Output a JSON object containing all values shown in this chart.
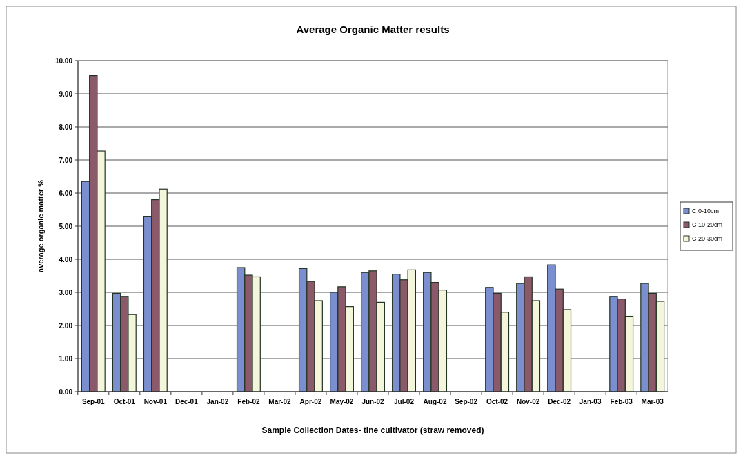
{
  "chart_data": {
    "type": "bar",
    "title": "Average Organic Matter results",
    "xlabel": "Sample Collection Dates- tine cultivator (straw removed)",
    "ylabel": "average organic matter %",
    "categories": [
      "Sep-01",
      "Oct-01",
      "Nov-01",
      "Dec-01",
      "Jan-02",
      "Feb-02",
      "Mar-02",
      "Apr-02",
      "May-02",
      "Jun-02",
      "Jul-02",
      "Aug-02",
      "Sep-02",
      "Oct-02",
      "Nov-02",
      "Dec-02",
      "Jan-03",
      "Feb-03",
      "Mar-03"
    ],
    "series": [
      {
        "name": "C 0-10cm",
        "color": "#7b8fd0",
        "values": [
          6.35,
          2.97,
          5.3,
          null,
          null,
          3.75,
          null,
          3.72,
          3.0,
          3.6,
          3.55,
          3.6,
          null,
          3.15,
          3.27,
          3.83,
          null,
          2.88,
          3.27
        ]
      },
      {
        "name": "C 10-20cm",
        "color": "#8b5a6a",
        "values": [
          9.55,
          2.88,
          5.8,
          null,
          null,
          3.52,
          null,
          3.33,
          3.17,
          3.65,
          3.38,
          3.3,
          null,
          2.97,
          3.47,
          3.1,
          null,
          2.8,
          2.97
        ]
      },
      {
        "name": "C 20-30cm",
        "color": "#f4f6dc",
        "values": [
          7.27,
          2.33,
          6.12,
          null,
          null,
          3.47,
          null,
          2.75,
          2.57,
          2.7,
          3.68,
          3.07,
          null,
          2.4,
          2.75,
          2.48,
          null,
          2.28,
          2.73
        ]
      }
    ],
    "ylim": [
      0,
      10
    ],
    "yticks": [
      {
        "value": 0,
        "label": "0.00"
      },
      {
        "value": 1,
        "label": "1.00"
      },
      {
        "value": 2,
        "label": "2.00"
      },
      {
        "value": 3,
        "label": "3.00"
      },
      {
        "value": 4,
        "label": "4.00"
      },
      {
        "value": 5,
        "label": "5.00"
      },
      {
        "value": 6,
        "label": "6.00"
      },
      {
        "value": 7,
        "label": "7.00"
      },
      {
        "value": 8,
        "label": "8.00"
      },
      {
        "value": 9,
        "label": "9.00"
      },
      {
        "value": 10,
        "label": "10.00"
      }
    ],
    "grid": "y",
    "legend": "right"
  }
}
